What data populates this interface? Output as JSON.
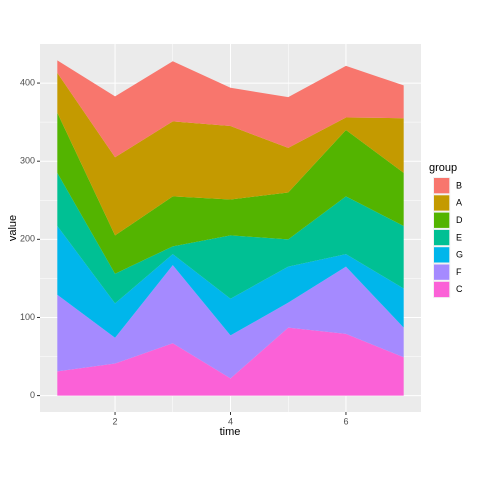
{
  "chart_data": {
    "type": "area",
    "stacked": true,
    "x_label": "time",
    "y_label": "value",
    "legend_title": "group",
    "x": [
      1,
      2,
      3,
      4,
      5,
      6,
      7
    ],
    "series": [
      {
        "name": "B",
        "color": "#F8766D",
        "values": [
          16,
          78,
          77,
          49,
          65,
          66,
          42
        ]
      },
      {
        "name": "A",
        "color": "#C49A00",
        "values": [
          51,
          100,
          96,
          94,
          57,
          16,
          70
        ]
      },
      {
        "name": "D",
        "color": "#53B400",
        "values": [
          77,
          49,
          64,
          46,
          60,
          85,
          68
        ]
      },
      {
        "name": "E",
        "color": "#00C094",
        "values": [
          68,
          38,
          10,
          81,
          35,
          74,
          80
        ]
      },
      {
        "name": "G",
        "color": "#00B6EB",
        "values": [
          88,
          44,
          14,
          47,
          46,
          16,
          50
        ]
      },
      {
        "name": "F",
        "color": "#A58AFF",
        "values": [
          98,
          33,
          100,
          55,
          32,
          86,
          38
        ]
      },
      {
        "name": "C",
        "color": "#FB61D7",
        "values": [
          31,
          41,
          67,
          22,
          87,
          79,
          49
        ]
      }
    ],
    "xlim": [
      0.7,
      7.3
    ],
    "xticks": [
      2,
      4,
      6
    ],
    "ylim": [
      -21,
      450
    ],
    "yticks": [
      0,
      100,
      200,
      300,
      400
    ],
    "grid": true,
    "legend": "right"
  }
}
